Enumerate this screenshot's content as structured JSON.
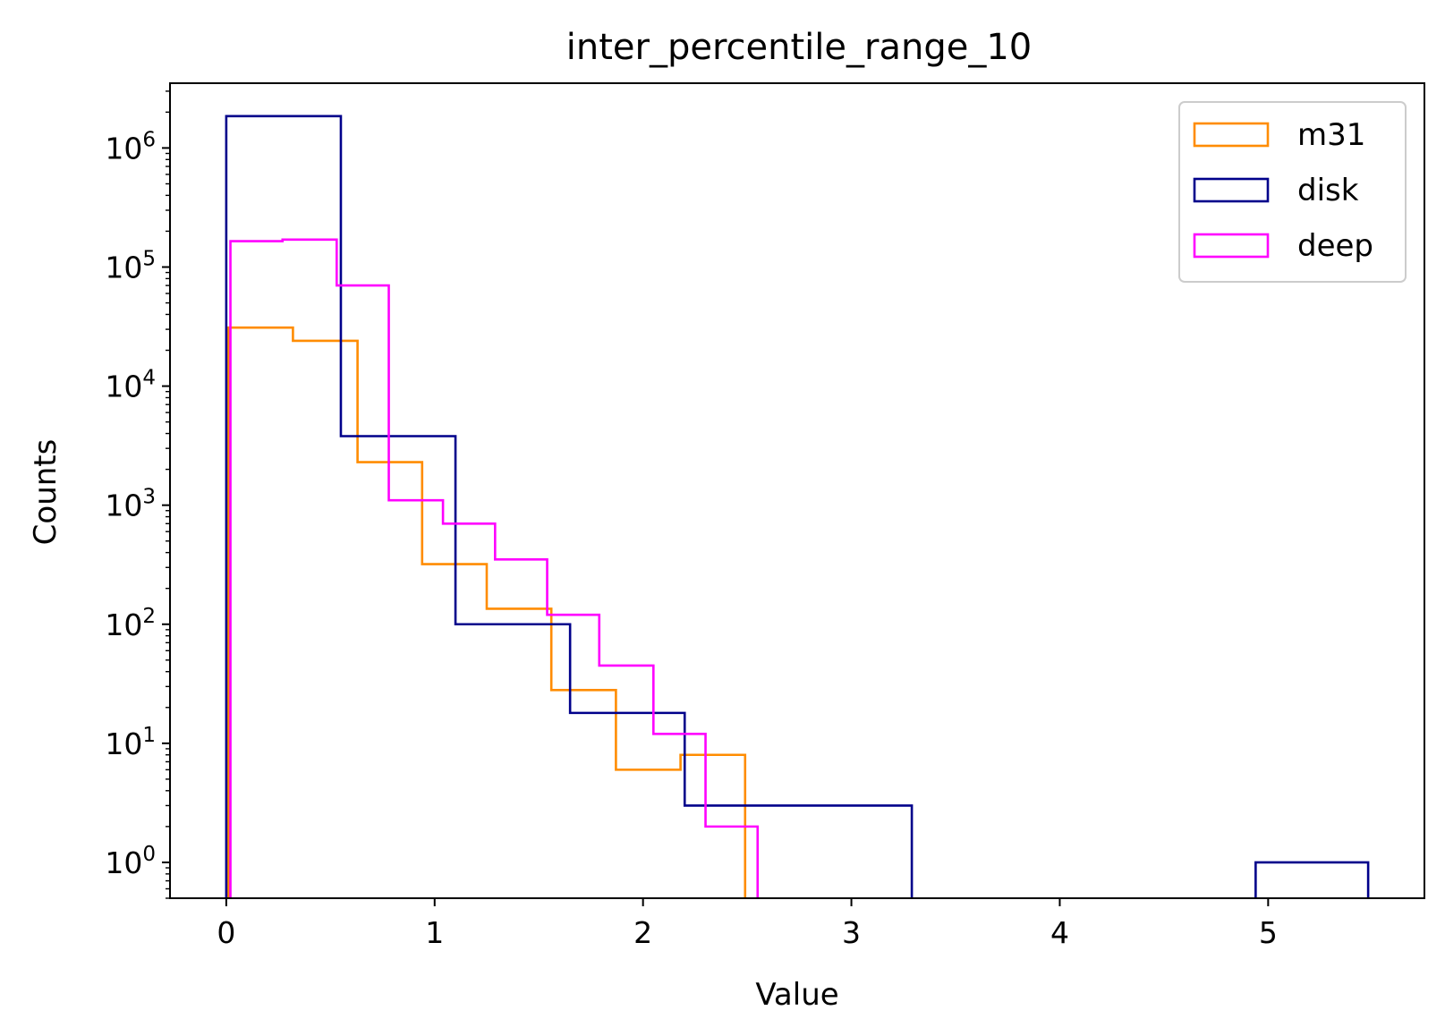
{
  "chart_data": {
    "type": "histogram-step",
    "title": "inter_percentile_range_10",
    "xlabel": "Value",
    "ylabel": "Counts",
    "xlim": [
      -0.27,
      5.75
    ],
    "ylim": [
      0.5,
      3500000
    ],
    "yscale": "log",
    "x_ticks": [
      0,
      1,
      2,
      3,
      4,
      5
    ],
    "y_ticks": [
      {
        "value": 1,
        "base": "10",
        "exp": "0"
      },
      {
        "value": 10,
        "base": "10",
        "exp": "1"
      },
      {
        "value": 100,
        "base": "10",
        "exp": "2"
      },
      {
        "value": 1000,
        "base": "10",
        "exp": "3"
      },
      {
        "value": 10000,
        "base": "10",
        "exp": "4"
      },
      {
        "value": 100000,
        "base": "10",
        "exp": "5"
      },
      {
        "value": 1000000,
        "base": "10",
        "exp": "6"
      }
    ],
    "legend_position": "top-right",
    "series": [
      {
        "name": "m31",
        "color": "#ff8c00",
        "edges": [
          0.01,
          0.32,
          0.63,
          0.94,
          1.25,
          1.56,
          1.87,
          2.18,
          2.49,
          2.8,
          3.11
        ],
        "counts": [
          31000,
          24000,
          2300,
          320,
          135,
          28,
          6,
          8,
          0,
          0
        ]
      },
      {
        "name": "disk",
        "color": "#00008b",
        "edges": [
          0.0,
          0.55,
          1.1,
          1.65,
          2.2,
          2.75,
          3.29,
          3.84,
          4.39,
          4.94,
          5.48
        ],
        "counts": [
          1850000,
          3800,
          100,
          18,
          3,
          3,
          0,
          0,
          0,
          1
        ]
      },
      {
        "name": "deep",
        "color": "#ff00ff",
        "edges": [
          0.02,
          0.27,
          0.53,
          0.78,
          1.04,
          1.29,
          1.54,
          1.79,
          2.05,
          2.3,
          2.55
        ],
        "counts": [
          165000,
          170000,
          70000,
          1100,
          700,
          350,
          120,
          45,
          12,
          2
        ]
      }
    ]
  }
}
